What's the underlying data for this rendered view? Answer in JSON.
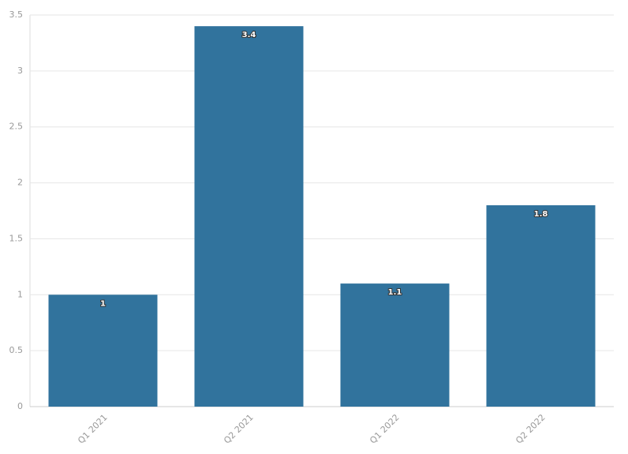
{
  "chart_data": {
    "type": "bar",
    "categories": [
      "Q1 2021",
      "Q2 2021",
      "Q1 2022",
      "Q2 2022"
    ],
    "values": [
      1,
      3.4,
      1.1,
      1.8
    ],
    "color": "#31739d",
    "ylim": [
      0,
      3.5
    ],
    "yticks": [
      0,
      0.5,
      1,
      1.5,
      2,
      2.5,
      3,
      3.5
    ],
    "grid": true
  }
}
